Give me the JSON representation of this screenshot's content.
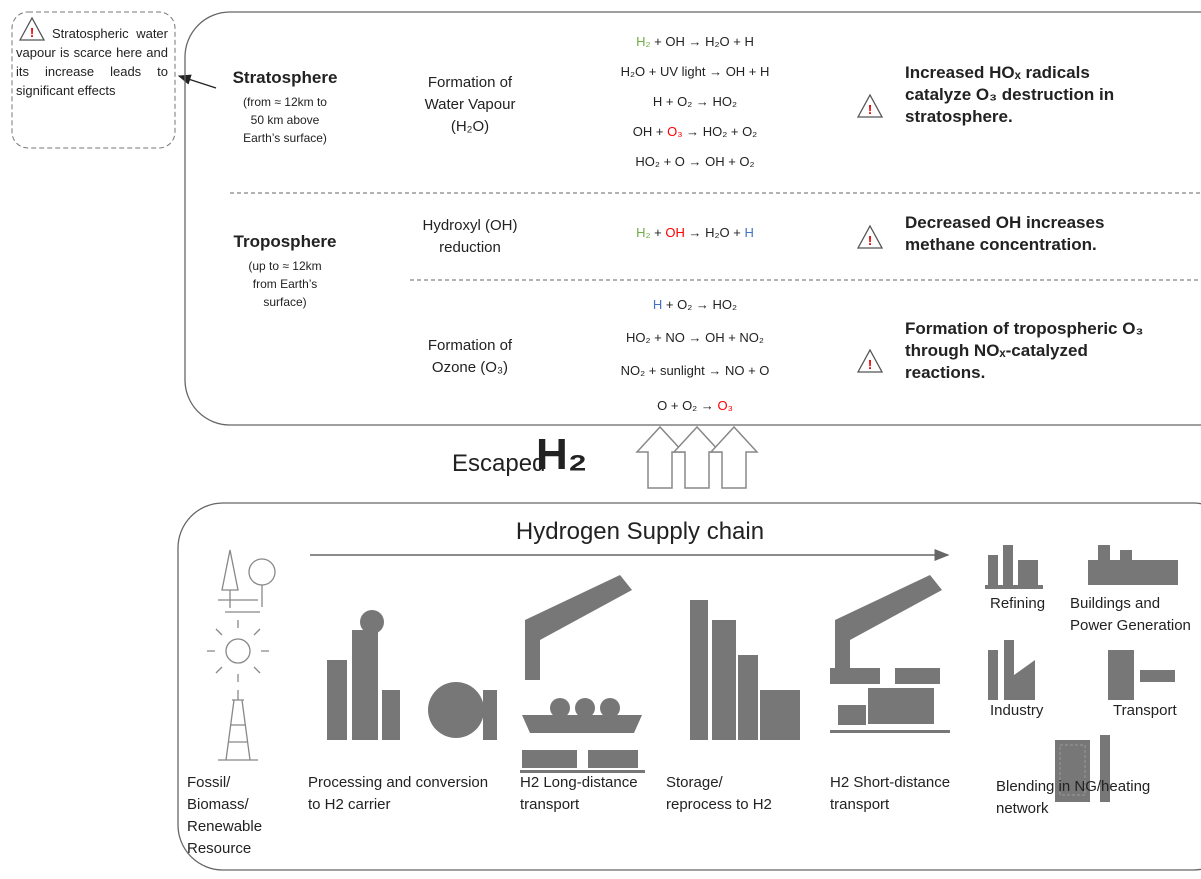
{
  "note": "Stratospheric water vapour is scarce here and its increase leads to significant effects",
  "layers": [
    {
      "name": "Stratosphere",
      "description": "(from ≈ 12km to\n50 km above\nEarth’s surface)"
    },
    {
      "name": "Troposphere",
      "description": "(up to ≈ 12km\nfrom Earth’s\nsurface)"
    }
  ],
  "processes": [
    {
      "label": "Formation of\nWater Vapour\n(H₂O)",
      "reactions": [
        [
          {
            "text": "H₂",
            "color": "#70ad47"
          },
          {
            "text": " + OH → H₂O + H"
          }
        ],
        [
          {
            "text": "H₂O + UV light → OH + H"
          }
        ],
        [
          {
            "text": "H + O₂ → HO₂"
          }
        ],
        [
          {
            "text": "OH + "
          },
          {
            "text": "O₃",
            "color": "#ff0000"
          },
          {
            "text": " → HO₂ + O₂"
          }
        ],
        [
          {
            "text": "HO₂ + O → OH + O₂"
          }
        ]
      ],
      "effect": "Increased HOₓ radicals\ncatalyze O₃ destruction in\nstratosphere."
    },
    {
      "label": "Hydroxyl (OH)\nreduction",
      "reactions": [
        [
          {
            "text": "H₂",
            "color": "#70ad47"
          },
          {
            "text": " + "
          },
          {
            "text": "OH",
            "color": "#ff0000"
          },
          {
            "text": " → H₂O + "
          },
          {
            "text": "H",
            "color": "#4472c4"
          }
        ]
      ],
      "effect": "Decreased OH increases\nmethane concentration."
    },
    {
      "label": "Formation of\nOzone (O₃)",
      "reactions": [
        [
          {
            "text": "H",
            "color": "#4472c4"
          },
          {
            "text": " + O₂ → HO₂"
          }
        ],
        [
          {
            "text": "HO₂ + NO → OH + NO₂"
          }
        ],
        [
          {
            "text": "NO₂ + sunlight → NO + O"
          }
        ],
        [
          {
            "text": "O + O₂ → "
          },
          {
            "text": "O₃",
            "color": "#ff0000"
          }
        ]
      ],
      "effect": "Formation of tropospheric O₃\nthrough NOₓ-catalyzed\nreactions."
    }
  ],
  "escaped": {
    "label": "Escaped",
    "symbol": "H₂"
  },
  "supply_chain": {
    "title": "Hydrogen Supply chain",
    "stages": [
      "Fossil/\nBiomass/\nRenewable\nResource",
      "Processing and conversion\nto H2 carrier",
      "H2 Long-distance\ntransport",
      "Storage/\nreprocess to H2",
      "H2 Short-distance\ntransport"
    ],
    "end_uses": [
      "Refining",
      "Buildings and\nPower Generation",
      "Industry",
      "Transport",
      "Blending in NG/heating\nnetwork"
    ]
  }
}
